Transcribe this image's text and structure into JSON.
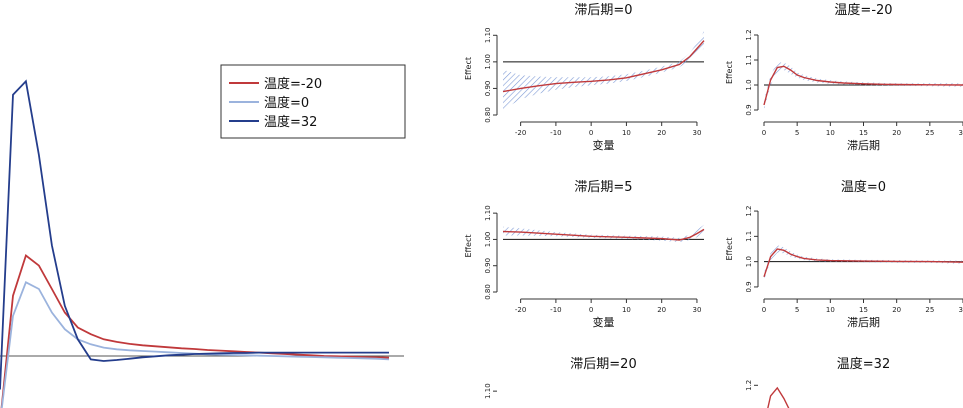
{
  "chart_data": [
    {
      "type": "line",
      "title": "",
      "xlabel": "",
      "ylabel": "",
      "legend_position": "top-right",
      "x": [
        0,
        1,
        2,
        3,
        4,
        5,
        6,
        7,
        8,
        9,
        10,
        11,
        12,
        13,
        14,
        15,
        16,
        17,
        18,
        19,
        20,
        21,
        22,
        23,
        24,
        25,
        26,
        27,
        28,
        29,
        30
      ],
      "series": [
        {
          "name": "温度=-20",
          "color": "#c0393b",
          "values": [
            0.8,
            1.18,
            1.3,
            1.27,
            1.2,
            1.13,
            1.085,
            1.065,
            1.05,
            1.042,
            1.036,
            1.032,
            1.029,
            1.026,
            1.023,
            1.021,
            1.018,
            1.016,
            1.014,
            1.012,
            1.01,
            1.008,
            1.006,
            1.004,
            1.002,
            1.0,
            0.999,
            0.998,
            0.997,
            0.996,
            0.995
          ]
        },
        {
          "name": "温度=0",
          "color": "#9bb3dd",
          "values": [
            0.8,
            1.12,
            1.22,
            1.2,
            1.13,
            1.08,
            1.05,
            1.035,
            1.025,
            1.02,
            1.017,
            1.015,
            1.013,
            1.011,
            1.009,
            1.007,
            1.005,
            1.004,
            1.003,
            1.002,
            1.001,
            1.0,
            0.999,
            0.998,
            0.997,
            0.996,
            0.995,
            0.994,
            0.993,
            0.992,
            0.99
          ]
        },
        {
          "name": "温度=32",
          "color": "#243d8c",
          "values": [
            0.9,
            1.78,
            1.82,
            1.6,
            1.33,
            1.15,
            1.05,
            0.99,
            0.985,
            0.988,
            0.992,
            0.996,
            0.999,
            1.002,
            1.004,
            1.006,
            1.007,
            1.008,
            1.009,
            1.009,
            1.01,
            1.01,
            1.01,
            1.01,
            1.01,
            1.01,
            1.01,
            1.01,
            1.01,
            1.01,
            1.01
          ]
        }
      ]
    },
    {
      "type": "line",
      "title": "滞后期=0",
      "xlabel": "变量",
      "ylabel": "Effect",
      "xlim": [
        -25,
        32
      ],
      "ylim": [
        0.8,
        1.15
      ],
      "xticks": [
        "-20",
        "-10",
        "0",
        "10",
        "20",
        "30"
      ],
      "yticks": [
        "0.80",
        "0.90",
        "1.00",
        "1.10"
      ],
      "reference_line": 1.0,
      "x": [
        -25,
        -20,
        -15,
        -10,
        -5,
        0,
        5,
        10,
        15,
        20,
        25,
        28,
        30,
        32
      ],
      "values": [
        0.888,
        0.9,
        0.91,
        0.918,
        0.923,
        0.927,
        0.932,
        0.94,
        0.955,
        0.97,
        0.99,
        1.02,
        1.05,
        1.08
      ],
      "ci_lower": [
        0.82,
        0.86,
        0.88,
        0.895,
        0.905,
        0.912,
        0.918,
        0.928,
        0.943,
        0.96,
        0.98,
        1.005,
        1.03,
        1.05
      ],
      "ci_upper": [
        0.97,
        0.95,
        0.945,
        0.942,
        0.942,
        0.942,
        0.946,
        0.953,
        0.967,
        0.982,
        1.0,
        1.035,
        1.07,
        1.115
      ]
    },
    {
      "type": "line",
      "title": "温度=-20",
      "xlabel": "滞后期",
      "ylabel": "Effect",
      "xlim": [
        0,
        30
      ],
      "ylim": [
        0.88,
        1.22
      ],
      "xticks": [
        "0",
        "5",
        "10",
        "15",
        "20",
        "25",
        "30"
      ],
      "yticks": [
        "0.9",
        "1.0",
        "1.1",
        "1.2"
      ],
      "reference_line": 1.0,
      "x": [
        0,
        1,
        2,
        3,
        4,
        5,
        6,
        8,
        10,
        12,
        15,
        18,
        20,
        25,
        30
      ],
      "values": [
        0.92,
        1.02,
        1.07,
        1.075,
        1.06,
        1.04,
        1.03,
        1.018,
        1.012,
        1.008,
        1.005,
        1.003,
        1.002,
        1.001,
        1.0
      ],
      "ci_lower": [
        0.9,
        1.0,
        1.05,
        1.06,
        1.045,
        1.03,
        1.02,
        1.01,
        1.005,
        1.002,
        0.999,
        0.998,
        0.997,
        0.995,
        0.993
      ],
      "ci_upper": [
        0.94,
        1.04,
        1.09,
        1.09,
        1.075,
        1.05,
        1.04,
        1.026,
        1.019,
        1.014,
        1.011,
        1.008,
        1.007,
        1.007,
        1.007
      ]
    },
    {
      "type": "line",
      "title": "滞后期=5",
      "xlabel": "变量",
      "ylabel": "Effect",
      "xlim": [
        -25,
        32
      ],
      "ylim": [
        0.8,
        1.15
      ],
      "xticks": [
        "-20",
        "-10",
        "0",
        "10",
        "20",
        "30"
      ],
      "yticks": [
        "0.80",
        "0.90",
        "1.00",
        "1.10"
      ],
      "reference_line": 1.0,
      "x": [
        -25,
        -20,
        -10,
        0,
        10,
        20,
        25,
        28,
        30,
        32
      ],
      "values": [
        1.03,
        1.028,
        1.02,
        1.012,
        1.008,
        1.003,
        0.998,
        1.008,
        1.022,
        1.038
      ],
      "ci_lower": [
        1.015,
        1.015,
        1.012,
        1.006,
        1.002,
        0.995,
        0.99,
        0.998,
        1.008,
        1.02
      ],
      "ci_upper": [
        1.048,
        1.042,
        1.028,
        1.018,
        1.014,
        1.011,
        1.006,
        1.018,
        1.036,
        1.056
      ]
    },
    {
      "type": "line",
      "title": "温度=0",
      "xlabel": "滞后期",
      "ylabel": "Effect",
      "xlim": [
        0,
        30
      ],
      "ylim": [
        0.88,
        1.22
      ],
      "xticks": [
        "0",
        "5",
        "10",
        "15",
        "20",
        "25",
        "30"
      ],
      "yticks": [
        "0.9",
        "1.0",
        "1.1",
        "1.2"
      ],
      "reference_line": 1.0,
      "x": [
        0,
        1,
        2,
        3,
        4,
        5,
        6,
        8,
        10,
        15,
        20,
        25,
        30
      ],
      "values": [
        0.94,
        1.02,
        1.05,
        1.045,
        1.03,
        1.02,
        1.013,
        1.007,
        1.004,
        1.002,
        1.001,
        1.0,
        0.998
      ],
      "ci_lower": [
        0.925,
        1.005,
        1.035,
        1.033,
        1.02,
        1.012,
        1.006,
        1.001,
        0.999,
        0.997,
        0.996,
        0.995,
        0.992
      ],
      "ci_upper": [
        0.955,
        1.035,
        1.065,
        1.057,
        1.04,
        1.028,
        1.02,
        1.013,
        1.009,
        1.007,
        1.006,
        1.005,
        1.004
      ]
    },
    {
      "type": "line",
      "title": "滞后期=20",
      "xlabel": "",
      "ylabel": "",
      "ylim": [
        0.8,
        1.15
      ],
      "yticks": [
        "1.10"
      ]
    },
    {
      "type": "line",
      "title": "温度=32",
      "xlabel": "",
      "ylabel": "",
      "xlim": [
        0,
        30
      ],
      "ylim": [
        0.88,
        1.22
      ],
      "yticks": [
        "1.2"
      ],
      "x": [
        0,
        1,
        2,
        3,
        4
      ],
      "values": [
        1.05,
        1.16,
        1.19,
        1.15,
        1.1
      ]
    }
  ]
}
